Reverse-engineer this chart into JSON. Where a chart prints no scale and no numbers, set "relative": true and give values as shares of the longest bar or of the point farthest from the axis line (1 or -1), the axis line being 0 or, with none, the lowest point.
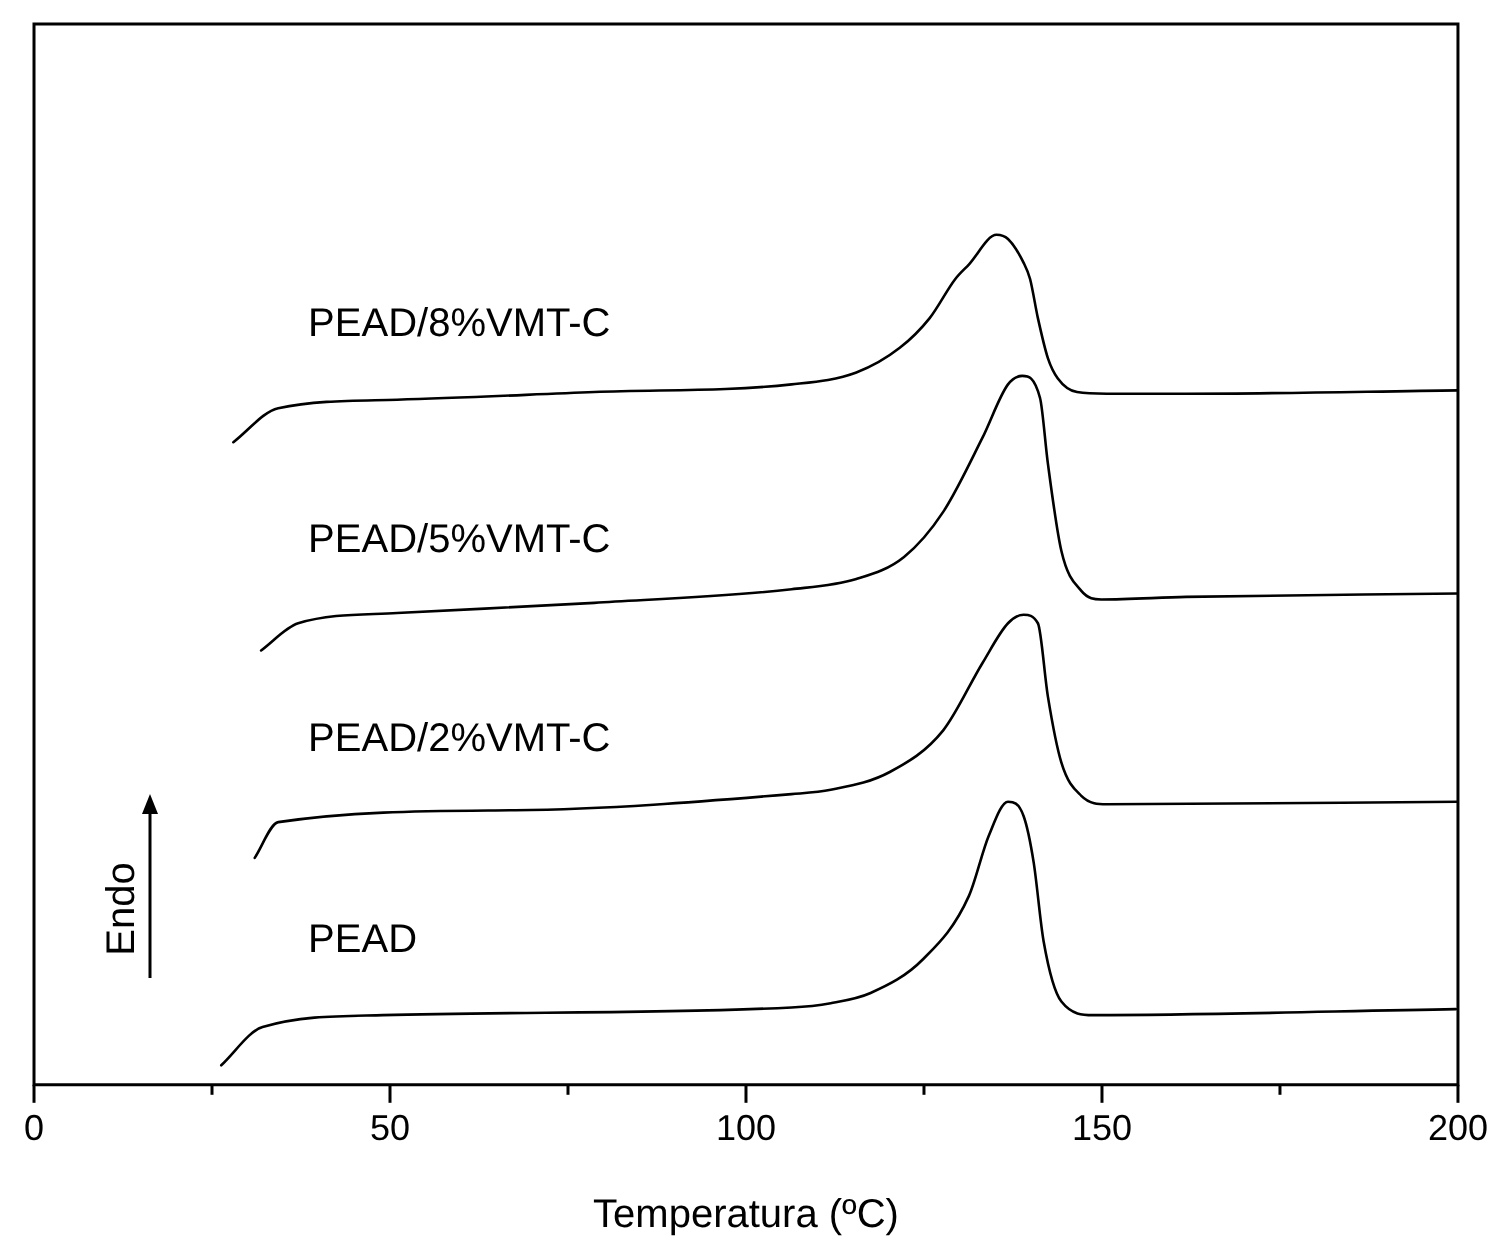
{
  "chart_data": {
    "type": "line",
    "relative": true,
    "xlabel": "Temperatura (ºC)",
    "ylabel": "Endo",
    "xlim": [
      0,
      200
    ],
    "xticks": [
      0,
      {
        "value": 25,
        "label": null
      },
      50,
      {
        "value": 75,
        "label": null
      },
      100,
      {
        "value": 125,
        "label": null
      },
      150,
      {
        "value": 175,
        "label": null
      },
      200
    ],
    "tick_labels": "x",
    "grid": false,
    "legend": false,
    "marker": "none",
    "line_style": "solid",
    "series": [
      {
        "name": "PEAD/8%VMT-C",
        "color": "#000000",
        "x": [
          28,
          34.3,
          51,
          78.7,
          106.4,
          115.5,
          121.6,
          125.8,
          129.4,
          131.3,
          135.2,
          136.8,
          139,
          139.9,
          141,
          142.4,
          143.8,
          146.5,
          150.7,
          161.8,
          200
        ],
        "values": [
          0.756,
          0.796,
          0.806,
          0.815,
          0.824,
          0.838,
          0.867,
          0.902,
          0.948,
          0.965,
          1.0,
          0.995,
          0.967,
          0.948,
          0.902,
          0.855,
          0.831,
          0.815,
          0.813,
          0.813,
          0.817
        ]
      },
      {
        "name": "PEAD/5%VMT-C",
        "color": "#000000",
        "x": [
          31.9,
          37.1,
          51,
          78.7,
          106.4,
          115.5,
          122.2,
          127.7,
          133.2,
          136.8,
          138.8,
          141.3,
          142.4,
          144.3,
          147.1,
          149.9,
          161.8,
          200
        ],
        "values": [
          0.511,
          0.543,
          0.555,
          0.567,
          0.583,
          0.595,
          0.621,
          0.674,
          0.761,
          0.824,
          0.834,
          0.808,
          0.731,
          0.628,
          0.581,
          0.571,
          0.574,
          0.578
        ]
      },
      {
        "name": "PEAD/2%VMT-C",
        "color": "#000000",
        "x": [
          31,
          34.3,
          67.6,
          106.4,
          111.9,
          120.2,
          127.7,
          133.2,
          136.8,
          139,
          141,
          142.4,
          144.3,
          147.1,
          150.7,
          200
        ],
        "values": [
          0.267,
          0.309,
          0.323,
          0.342,
          0.347,
          0.368,
          0.417,
          0.496,
          0.543,
          0.553,
          0.543,
          0.457,
          0.379,
          0.34,
          0.33,
          0.333
        ]
      },
      {
        "name": "PEAD",
        "color": "#000000",
        "x": [
          26.3,
          32.1,
          49,
          106.4,
          111.9,
          117.5,
          124.9,
          131.3,
          134.1,
          136.8,
          139,
          140.4,
          141.8,
          144.3,
          148.8,
          199.7
        ],
        "values": [
          0.023,
          0.068,
          0.082,
          0.091,
          0.096,
          0.108,
          0.148,
          0.222,
          0.293,
          0.333,
          0.316,
          0.262,
          0.169,
          0.098,
          0.082,
          0.089
        ]
      }
    ]
  }
}
